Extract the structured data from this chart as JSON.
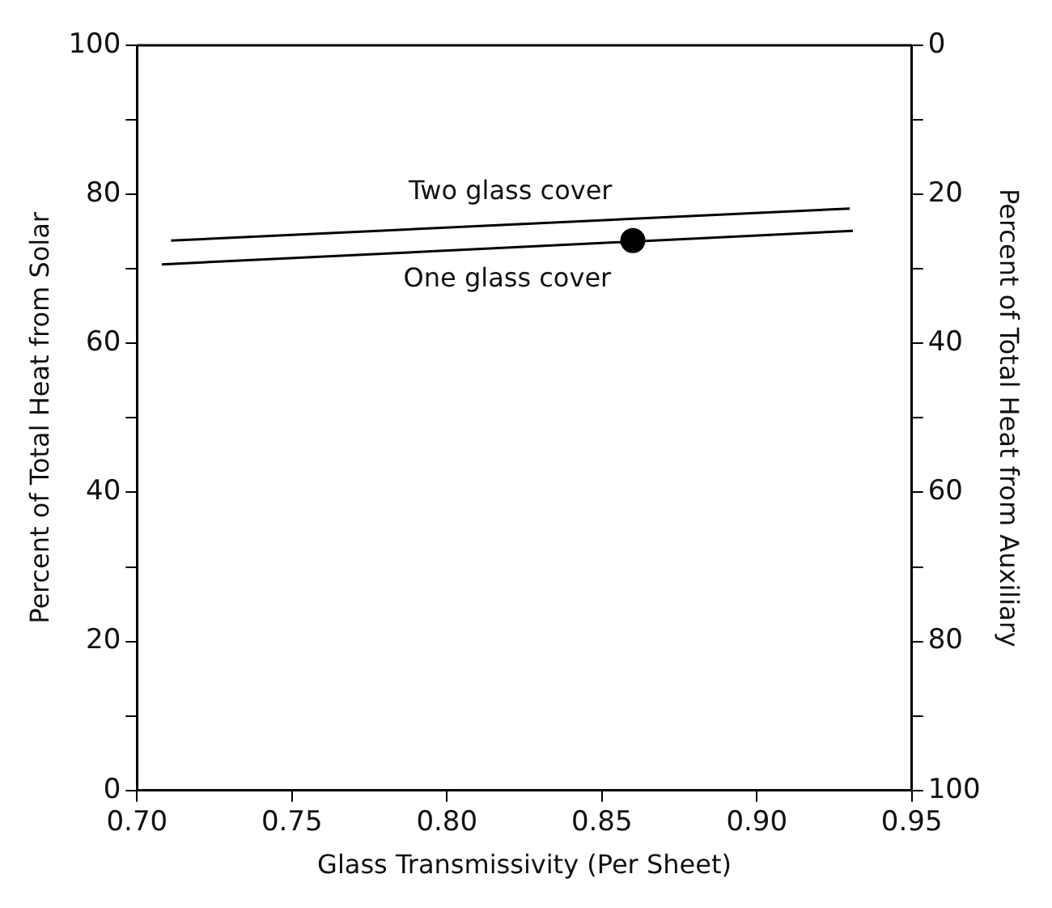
{
  "chart_data": {
    "type": "line",
    "xlabel": "Glass Transmissivity (Per Sheet)",
    "ylabel": "Percent of Total Heat from Solar",
    "y2label": "Percent of Total Heat from Auxiliary",
    "xlim": [
      0.7,
      0.95
    ],
    "xticks": [
      {
        "value": 0.7,
        "label": "0.70"
      },
      {
        "value": 0.75,
        "label": "0.75"
      },
      {
        "value": 0.8,
        "label": "0.80"
      },
      {
        "value": 0.85,
        "label": "0.85"
      },
      {
        "value": 0.9,
        "label": "0.90"
      },
      {
        "value": 0.95,
        "label": "0.95"
      }
    ],
    "ylim": [
      0,
      100
    ],
    "yticks": [
      0,
      {
        "value": 10,
        "label": null
      },
      20,
      {
        "value": 30,
        "label": null
      },
      40,
      {
        "value": 50,
        "label": null
      },
      60,
      {
        "value": 70,
        "label": null
      },
      80,
      {
        "value": 90,
        "label": null
      },
      100
    ],
    "y2lim": [
      100,
      0
    ],
    "y2ticks": [
      0,
      {
        "value": 10,
        "label": null
      },
      20,
      {
        "value": 30,
        "label": null
      },
      40,
      {
        "value": 50,
        "label": null
      },
      60,
      {
        "value": 70,
        "label": null
      },
      80,
      {
        "value": 90,
        "label": null
      },
      100
    ],
    "grid": false,
    "legend": false,
    "marker": "none",
    "line_style": "solid",
    "series": [
      {
        "name": "Two glass cover",
        "color": "#000000",
        "x": [
          0.711,
          0.93
        ],
        "values": [
          73.8,
          78.1
        ]
      },
      {
        "name": "One glass cover",
        "color": "#000000",
        "x": [
          0.708,
          0.931
        ],
        "values": [
          70.6,
          75.1
        ]
      },
      {
        "type": "scatter",
        "color": "#000000",
        "marker": "circle",
        "x": [
          0.86
        ],
        "values": [
          73.8
        ]
      }
    ]
  }
}
